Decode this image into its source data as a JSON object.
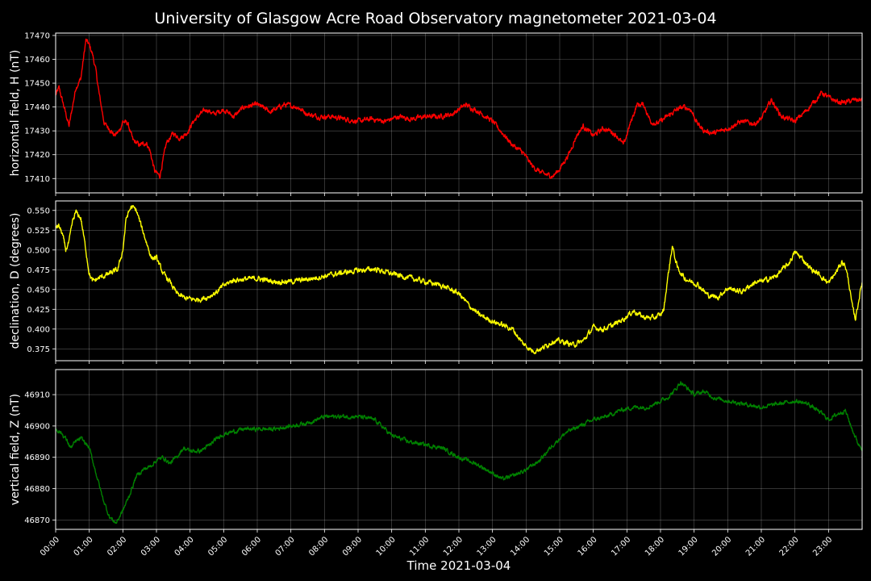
{
  "chart_data": {
    "type": "line",
    "title": "University of Glasgow Acre Road Observatory magnetometer 2021-03-04",
    "xlabel": "Time 2021-03-04",
    "x_ticks": [
      "00:00",
      "01:00",
      "02:00",
      "03:00",
      "04:00",
      "05:00",
      "06:00",
      "07:00",
      "08:00",
      "09:00",
      "10:00",
      "11:00",
      "12:00",
      "13:00",
      "14:00",
      "15:00",
      "16:00",
      "17:00",
      "18:00",
      "19:00",
      "20:00",
      "21:00",
      "22:00",
      "23:00"
    ],
    "xlim_hours": [
      0,
      24
    ],
    "grid": true,
    "background": "#000000",
    "panels": [
      {
        "ylabel": "horizontal field, H (nT)",
        "color": "#ff0000",
        "ylim": [
          17404,
          17471
        ],
        "yticks": [
          17410,
          17420,
          17430,
          17440,
          17450,
          17460,
          17470
        ],
        "ytick_labels": [
          "17410",
          "17420",
          "17430",
          "17440",
          "17450",
          "17460",
          "17470"
        ],
        "noise": 0.8,
        "x": [
          0,
          0.1,
          0.25,
          0.4,
          0.5,
          0.6,
          0.75,
          0.9,
          1.0,
          1.1,
          1.2,
          1.3,
          1.45,
          1.6,
          1.75,
          1.9,
          2.0,
          2.15,
          2.3,
          2.5,
          2.7,
          2.8,
          2.95,
          3.1,
          3.3,
          3.5,
          3.7,
          3.8,
          3.9,
          4.1,
          4.3,
          4.5,
          4.7,
          5.0,
          5.3,
          5.6,
          6.0,
          6.4,
          6.8,
          7.2,
          7.5,
          7.8,
          8.2,
          8.6,
          9.0,
          9.4,
          9.8,
          10.2,
          10.6,
          11.0,
          11.4,
          11.8,
          12.2,
          12.6,
          13.0,
          13.3,
          13.6,
          13.9,
          14.2,
          14.5,
          14.8,
          15.0,
          15.3,
          15.5,
          15.7,
          15.85,
          16.0,
          16.1,
          16.3,
          16.5,
          16.7,
          16.9,
          17.1,
          17.3,
          17.5,
          17.7,
          17.9,
          18.1,
          18.3,
          18.5,
          18.7,
          18.9,
          19.1,
          19.3,
          19.6,
          20.0,
          20.4,
          20.8,
          21.0,
          21.3,
          21.6,
          22.0,
          22.3,
          22.5,
          22.8,
          23.0,
          23.3,
          23.5,
          23.8,
          24.0
        ],
        "y": [
          17445,
          17448,
          17440,
          17432,
          17440,
          17448,
          17452,
          17468,
          17466,
          17462,
          17455,
          17445,
          17433,
          17431,
          17428,
          17430,
          17434,
          17433,
          17426,
          17424,
          17425,
          17422,
          17413,
          17411,
          17425,
          17429,
          17427,
          17428,
          17429,
          17434,
          17437,
          17439,
          17437,
          17439,
          17436,
          17440,
          17441,
          17438,
          17441,
          17440,
          17437,
          17436,
          17436,
          17435,
          17434,
          17435,
          17434,
          17436,
          17435,
          17436,
          17436,
          17437,
          17441,
          17438,
          17434,
          17429,
          17424,
          17421,
          17415,
          17412,
          17411,
          17414,
          17421,
          17428,
          17432,
          17430,
          17428,
          17429,
          17431,
          17430,
          17428,
          17424,
          17433,
          17441,
          17441,
          17434,
          17433,
          17435,
          17437,
          17439,
          17440,
          17439,
          17433,
          17430,
          17429,
          17431,
          17434,
          17433,
          17435,
          17443,
          17436,
          17434,
          17438,
          17441,
          17446,
          17444,
          17442,
          17442,
          17443,
          17443
        ]
      },
      {
        "ylabel": "declination, D (degrees)",
        "color": "#ffff00",
        "ylim": [
          0.36,
          0.562
        ],
        "yticks": [
          0.375,
          0.4,
          0.425,
          0.45,
          0.475,
          0.5,
          0.525,
          0.55
        ],
        "ytick_labels": [
          "0.375",
          "0.400",
          "0.425",
          "0.450",
          "0.475",
          "0.500",
          "0.525",
          "0.550"
        ],
        "noise": 0.0025,
        "x": [
          0,
          0.1,
          0.2,
          0.3,
          0.4,
          0.5,
          0.6,
          0.75,
          0.9,
          1.0,
          1.1,
          1.3,
          1.5,
          1.7,
          1.85,
          2.0,
          2.1,
          2.25,
          2.4,
          2.55,
          2.7,
          2.85,
          3.0,
          3.2,
          3.4,
          3.6,
          3.8,
          4.0,
          4.2,
          4.5,
          4.8,
          5.0,
          5.3,
          5.6,
          6.0,
          6.5,
          7.0,
          7.5,
          8.0,
          8.5,
          9.0,
          9.5,
          10.0,
          10.5,
          11.0,
          11.5,
          12.0,
          12.3,
          12.6,
          13.0,
          13.3,
          13.6,
          13.9,
          14.2,
          14.5,
          14.8,
          15.1,
          15.4,
          15.7,
          16.0,
          16.3,
          16.6,
          16.9,
          17.2,
          17.5,
          17.8,
          18.0,
          18.1,
          18.2,
          18.35,
          18.5,
          18.7,
          18.9,
          19.1,
          19.4,
          19.7,
          20.0,
          20.4,
          20.8,
          21.0,
          21.4,
          21.8,
          22.0,
          22.2,
          22.5,
          22.7,
          23.0,
          23.2,
          23.4,
          23.5,
          23.6,
          23.7,
          23.8,
          24.0
        ],
        "y": [
          0.53,
          0.53,
          0.52,
          0.5,
          0.51,
          0.535,
          0.548,
          0.54,
          0.5,
          0.47,
          0.46,
          0.465,
          0.468,
          0.472,
          0.475,
          0.5,
          0.54,
          0.555,
          0.55,
          0.53,
          0.51,
          0.49,
          0.49,
          0.47,
          0.46,
          0.445,
          0.44,
          0.438,
          0.437,
          0.44,
          0.447,
          0.455,
          0.462,
          0.463,
          0.464,
          0.46,
          0.46,
          0.463,
          0.467,
          0.471,
          0.474,
          0.476,
          0.47,
          0.465,
          0.46,
          0.455,
          0.445,
          0.43,
          0.418,
          0.41,
          0.405,
          0.4,
          0.382,
          0.372,
          0.376,
          0.385,
          0.384,
          0.38,
          0.385,
          0.402,
          0.4,
          0.405,
          0.413,
          0.423,
          0.415,
          0.414,
          0.418,
          0.425,
          0.46,
          0.505,
          0.478,
          0.465,
          0.46,
          0.457,
          0.443,
          0.44,
          0.452,
          0.447,
          0.459,
          0.46,
          0.466,
          0.482,
          0.497,
          0.49,
          0.475,
          0.47,
          0.458,
          0.47,
          0.485,
          0.48,
          0.46,
          0.43,
          0.413,
          0.46
        ]
      },
      {
        "ylabel": "vertical field, Z (nT)",
        "color": "#008000",
        "ylim": [
          46867,
          46918
        ],
        "yticks": [
          46870,
          46880,
          46890,
          46900,
          46910
        ],
        "ytick_labels": [
          "46870",
          "46880",
          "46890",
          "46900",
          "46910"
        ],
        "noise": 0.5,
        "x": [
          0,
          0.15,
          0.3,
          0.45,
          0.6,
          0.75,
          0.85,
          1.0,
          1.2,
          1.4,
          1.6,
          1.8,
          2.0,
          2.2,
          2.4,
          2.6,
          2.8,
          3.0,
          3.2,
          3.4,
          3.6,
          3.8,
          4.0,
          4.3,
          4.6,
          4.9,
          5.2,
          5.6,
          6.0,
          6.5,
          7.0,
          7.5,
          8.0,
          8.5,
          9.0,
          9.5,
          10.0,
          10.5,
          11.0,
          11.5,
          12.0,
          12.5,
          13.0,
          13.3,
          13.6,
          14.0,
          14.4,
          14.8,
          15.2,
          15.6,
          16.0,
          16.4,
          16.8,
          17.2,
          17.6,
          18.0,
          18.2,
          18.4,
          18.6,
          18.8,
          19.0,
          19.3,
          19.6,
          20.0,
          20.5,
          21.0,
          21.5,
          22.0,
          22.4,
          22.8,
          23.0,
          23.3,
          23.5,
          23.7,
          23.9,
          24.0
        ],
        "y": [
          46899,
          46898,
          46896,
          46893,
          46895,
          46896,
          46895,
          46893,
          46885,
          46877,
          46871,
          46869,
          46873,
          46878,
          46884,
          46886,
          46887,
          46889,
          46890,
          46888,
          46890,
          46893,
          46892,
          46892,
          46894,
          46897,
          46898,
          46899,
          46899,
          46899,
          46900,
          46901,
          46903,
          46903,
          46903,
          46902,
          46897,
          46895,
          46894,
          46893,
          46890,
          46888,
          46885,
          46883,
          46884,
          46886,
          46889,
          46894,
          46898,
          46900,
          46902,
          46903,
          46905,
          46906,
          46906,
          46908,
          46909,
          46911,
          46914,
          46912,
          46910,
          46911,
          46909,
          46908,
          46907,
          46906,
          46907,
          46908,
          46907,
          46904,
          46902,
          46904,
          46905,
          46899,
          46894,
          46893
        ]
      }
    ]
  }
}
